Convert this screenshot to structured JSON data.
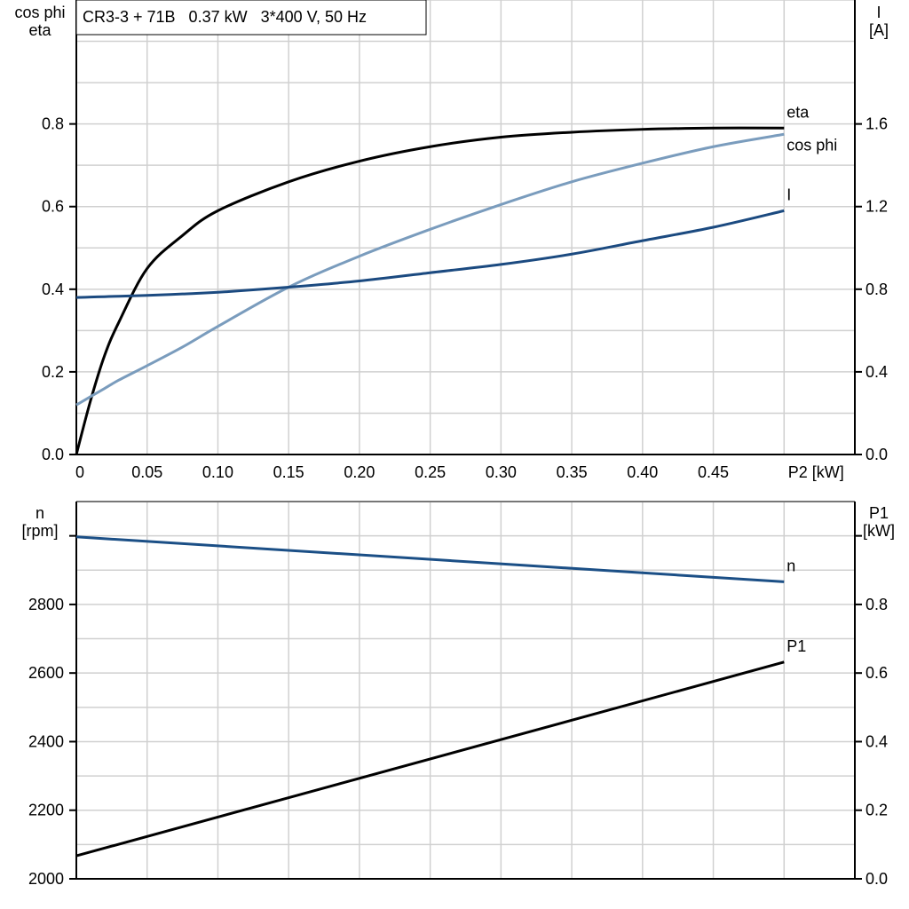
{
  "title": "CR3-3 + 71B   0.37 kW   3*400 V, 50 Hz",
  "colors": {
    "eta": "#000000",
    "cos_phi": "#7a9cbd",
    "I": "#1b4a80",
    "n": "#1b4f86",
    "P1": "#000000",
    "grid": "#d0d0d0"
  },
  "chart_data": [
    {
      "type": "line",
      "title": "CR3-3 + 71B   0.37 kW   3*400 V, 50 Hz",
      "xlabel": "P2 [kW]",
      "xlim": [
        0,
        0.55
      ],
      "x_ticks": [
        "0",
        "0.05",
        "0.10",
        "0.15",
        "0.20",
        "0.25",
        "0.30",
        "0.35",
        "0.40",
        "0.45"
      ],
      "ylabel_left": [
        "cos phi",
        "eta"
      ],
      "ylim_left": [
        0,
        1.1
      ],
      "y_ticks_left": [
        "0.0",
        "0.2",
        "0.4",
        "0.6",
        "0.8"
      ],
      "ylabel_right": [
        "I",
        "[A]"
      ],
      "ylim_right": [
        0,
        2.2
      ],
      "y_ticks_right": [
        "0.0",
        "0.4",
        "0.8",
        "1.2",
        "1.6"
      ],
      "grid": true,
      "x": [
        0,
        0.01,
        0.02,
        0.03,
        0.05,
        0.075,
        0.1,
        0.15,
        0.2,
        0.25,
        0.3,
        0.35,
        0.4,
        0.45,
        0.5
      ],
      "series": [
        {
          "name": "eta",
          "axis": "left",
          "values": [
            0,
            0.13,
            0.24,
            0.32,
            0.45,
            0.53,
            0.59,
            0.66,
            0.71,
            0.745,
            0.768,
            0.78,
            0.787,
            0.79,
            0.79
          ]
        },
        {
          "name": "cos phi",
          "axis": "left",
          "values": [
            0.12,
            0.14,
            0.16,
            0.18,
            0.215,
            0.26,
            0.31,
            0.405,
            0.48,
            0.545,
            0.605,
            0.66,
            0.705,
            0.745,
            0.775
          ]
        },
        {
          "name": "I",
          "axis": "right",
          "values": [
            0.76,
            0.762,
            0.764,
            0.766,
            0.77,
            0.777,
            0.785,
            0.81,
            0.84,
            0.88,
            0.92,
            0.97,
            1.035,
            1.1,
            1.18
          ]
        }
      ]
    },
    {
      "type": "line",
      "xlim": [
        0,
        0.55
      ],
      "ylabel_left": [
        "n",
        "[rpm]"
      ],
      "ylim_left": [
        2000,
        3100
      ],
      "y_ticks_left": [
        "2000",
        "2200",
        "2400",
        "2600",
        "2800",
        ""
      ],
      "ylabel_right": [
        "P1",
        "[kW]"
      ],
      "ylim_right": [
        0,
        1.1
      ],
      "y_ticks_right": [
        "0.0",
        "0.2",
        "0.4",
        "0.6",
        "0.8",
        ""
      ],
      "grid": true,
      "x": [
        0,
        0.5
      ],
      "series": [
        {
          "name": "n",
          "axis": "left",
          "values": [
            2997,
            2866
          ]
        },
        {
          "name": "P1",
          "axis": "right",
          "values": [
            0.067,
            0.632
          ]
        }
      ]
    }
  ]
}
